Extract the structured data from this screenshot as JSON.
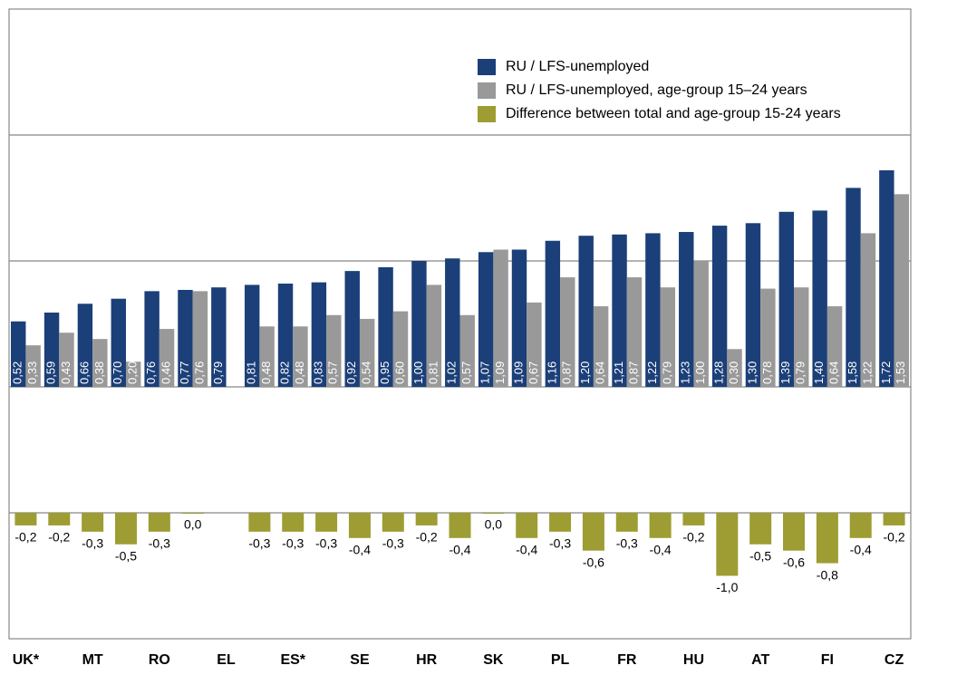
{
  "chart_data": {
    "type": "bar",
    "categories": [
      "UK*",
      null,
      "MT",
      null,
      "RO",
      null,
      "EL",
      null,
      "ES*",
      null,
      "SE",
      null,
      "HR",
      null,
      "SK",
      null,
      "PL",
      null,
      "FR",
      null,
      "HU",
      null,
      "AT",
      null,
      "FI",
      null,
      "CZ"
    ],
    "series": [
      {
        "name": "RU / LFS-unemployed",
        "color": "#1b3f78",
        "values": [
          0.52,
          0.59,
          0.66,
          0.7,
          0.76,
          0.77,
          0.79,
          0.81,
          0.82,
          0.83,
          0.92,
          0.95,
          1.0,
          1.02,
          1.07,
          1.09,
          1.16,
          1.2,
          1.21,
          1.22,
          1.23,
          1.28,
          1.3,
          1.39,
          1.4,
          1.58,
          1.72
        ],
        "value_labels": [
          "0,52",
          "0,59",
          "0,66",
          "0,70",
          "0,76",
          "0,77",
          "0,79",
          "0,81",
          "0,82",
          "0,83",
          "0,92",
          "0,95",
          "1,00",
          "1,02",
          "1,07",
          "1,09",
          "1,16",
          "1,20",
          "1,21",
          "1,22",
          "1,23",
          "1,28",
          "1,30",
          "1,39",
          "1,40",
          "1,58",
          "1,72"
        ]
      },
      {
        "name": "RU / LFS-unemployed, age-group 15–24 years",
        "color": "#999999",
        "values": [
          0.33,
          0.43,
          0.38,
          0.2,
          0.46,
          0.76,
          null,
          0.48,
          0.48,
          0.57,
          0.54,
          0.6,
          0.81,
          0.57,
          1.09,
          0.67,
          0.87,
          0.64,
          0.87,
          0.79,
          1.0,
          0.3,
          0.78,
          0.79,
          0.64,
          1.22,
          1.53
        ],
        "value_labels": [
          "0,33",
          "0,43",
          "0,38",
          "0,20",
          "0,46",
          "0,76",
          null,
          "0,48",
          "0,48",
          "0,57",
          "0,54",
          "0,60",
          "0,81",
          "0,57",
          "1,09",
          "0,67",
          "0,87",
          "0,64",
          "0,87",
          "0,79",
          "1,00",
          "0,30",
          "0,78",
          "0,79",
          "0,64",
          "1,22",
          "1,53"
        ]
      },
      {
        "name": "Difference between total and age-group 15-24 years",
        "color": "#9d9d33",
        "axis": "y2",
        "values": [
          -0.2,
          -0.2,
          -0.3,
          -0.5,
          -0.3,
          0.0,
          null,
          -0.3,
          -0.3,
          -0.3,
          -0.4,
          -0.3,
          -0.2,
          -0.4,
          0.0,
          -0.4,
          -0.3,
          -0.6,
          -0.3,
          -0.4,
          -0.2,
          -1.0,
          -0.5,
          -0.6,
          -0.8,
          -0.4,
          -0.2
        ],
        "value_labels": [
          "-0,2",
          "-0,2",
          "-0,3",
          "-0,5",
          "-0,3",
          "0,0",
          null,
          "-0,3",
          "-0,3",
          "-0,3",
          "-0,4",
          "-0,3",
          "-0,2",
          "-0,4",
          "0,0",
          "-0,4",
          "-0,3",
          "-0,6",
          "-0,3",
          "-0,4",
          "-0,2",
          "-1,0",
          "-0,5",
          "-0,6",
          "-0,8",
          "-0,4",
          "-0,2"
        ]
      }
    ],
    "ylim": [
      -2,
      3
    ],
    "yticks": [
      -1,
      0,
      1,
      2
    ],
    "y2lim": [
      -2,
      8
    ],
    "grid": true,
    "legend": "top-right"
  }
}
